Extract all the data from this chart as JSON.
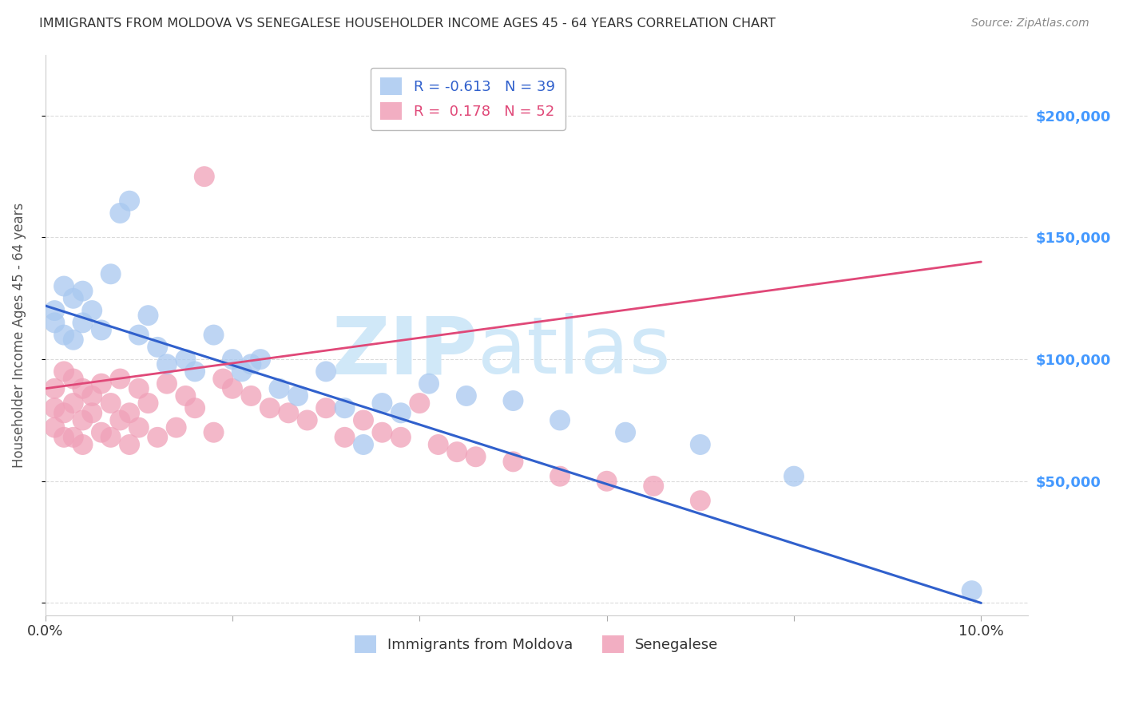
{
  "title": "IMMIGRANTS FROM MOLDOVA VS SENEGALESE HOUSEHOLDER INCOME AGES 45 - 64 YEARS CORRELATION CHART",
  "source": "Source: ZipAtlas.com",
  "ylabel": "Householder Income Ages 45 - 64 years",
  "xlim": [
    0.0,
    0.105
  ],
  "ylim": [
    -5000,
    225000
  ],
  "yticks": [
    0,
    50000,
    100000,
    150000,
    200000
  ],
  "ytick_labels": [
    "",
    "$50,000",
    "$100,000",
    "$150,000",
    "$200,000"
  ],
  "xticks": [
    0.0,
    0.02,
    0.04,
    0.06,
    0.08,
    0.1
  ],
  "moldova_R": -0.613,
  "moldova_N": 39,
  "senegal_R": 0.178,
  "senegal_N": 52,
  "moldova_color": "#A8C8F0",
  "senegal_color": "#F0A0B8",
  "moldova_line_color": "#3060CC",
  "senegal_line_color": "#E04878",
  "title_color": "#333333",
  "axis_label_color": "#555555",
  "ytick_color": "#4499FF",
  "background_color": "#FFFFFF",
  "grid_color": "#CCCCCC",
  "watermark_color": "#D0E8F8",
  "moldova_scatter_x": [
    0.001,
    0.001,
    0.002,
    0.002,
    0.003,
    0.003,
    0.004,
    0.004,
    0.005,
    0.006,
    0.007,
    0.008,
    0.009,
    0.01,
    0.011,
    0.012,
    0.013,
    0.015,
    0.016,
    0.018,
    0.02,
    0.021,
    0.022,
    0.023,
    0.025,
    0.027,
    0.03,
    0.032,
    0.034,
    0.036,
    0.038,
    0.041,
    0.045,
    0.05,
    0.055,
    0.062,
    0.07,
    0.08,
    0.099
  ],
  "moldova_scatter_y": [
    120000,
    115000,
    130000,
    110000,
    125000,
    108000,
    128000,
    115000,
    120000,
    112000,
    135000,
    160000,
    165000,
    110000,
    118000,
    105000,
    98000,
    100000,
    95000,
    110000,
    100000,
    95000,
    98000,
    100000,
    88000,
    85000,
    95000,
    80000,
    65000,
    82000,
    78000,
    90000,
    85000,
    83000,
    75000,
    70000,
    65000,
    52000,
    5000
  ],
  "senegal_scatter_x": [
    0.001,
    0.001,
    0.001,
    0.002,
    0.002,
    0.002,
    0.003,
    0.003,
    0.003,
    0.004,
    0.004,
    0.004,
    0.005,
    0.005,
    0.006,
    0.006,
    0.007,
    0.007,
    0.008,
    0.008,
    0.009,
    0.009,
    0.01,
    0.01,
    0.011,
    0.012,
    0.013,
    0.014,
    0.015,
    0.016,
    0.017,
    0.018,
    0.019,
    0.02,
    0.022,
    0.024,
    0.026,
    0.028,
    0.03,
    0.032,
    0.034,
    0.036,
    0.038,
    0.04,
    0.042,
    0.044,
    0.046,
    0.05,
    0.055,
    0.06,
    0.065,
    0.07
  ],
  "senegal_scatter_y": [
    88000,
    80000,
    72000,
    95000,
    78000,
    68000,
    92000,
    82000,
    68000,
    88000,
    75000,
    65000,
    85000,
    78000,
    90000,
    70000,
    82000,
    68000,
    92000,
    75000,
    78000,
    65000,
    88000,
    72000,
    82000,
    68000,
    90000,
    72000,
    85000,
    80000,
    175000,
    70000,
    92000,
    88000,
    85000,
    80000,
    78000,
    75000,
    80000,
    68000,
    75000,
    70000,
    68000,
    82000,
    65000,
    62000,
    60000,
    58000,
    52000,
    50000,
    48000,
    42000
  ]
}
